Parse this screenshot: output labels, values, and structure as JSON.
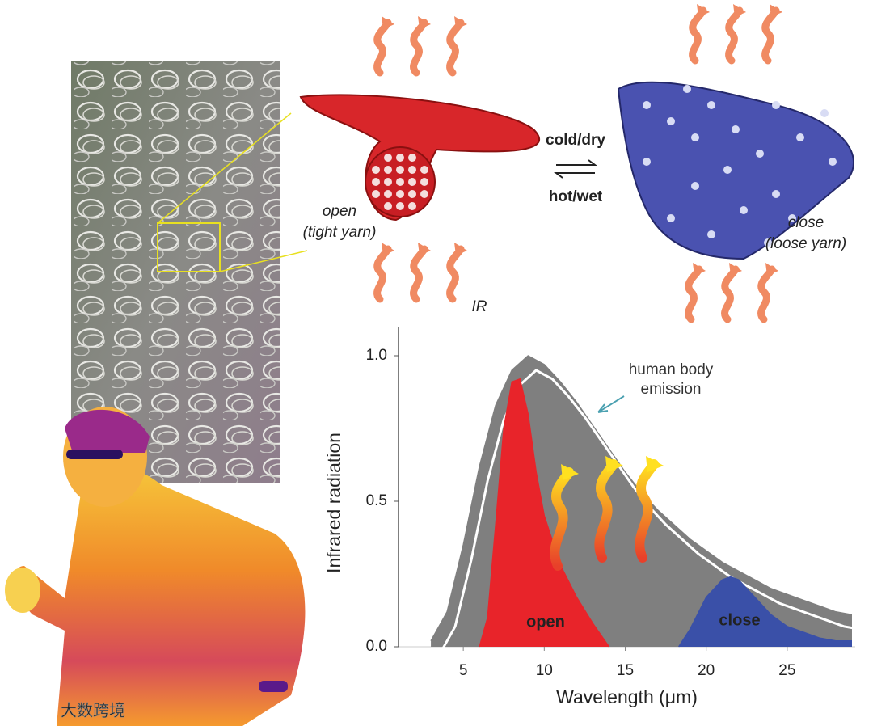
{
  "chart_data": {
    "type": "area",
    "xlabel": "Wavelength (μm)",
    "ylabel": "Infrared radiation",
    "xlim": [
      1,
      29.2
    ],
    "ylim": [
      0,
      1.1
    ],
    "xticks": [
      5,
      10,
      15,
      20,
      25
    ],
    "yticks": [
      {
        "value": 0,
        "label": "0.0"
      },
      0.5,
      {
        "value": 1,
        "label": "1.0"
      }
    ],
    "series": [
      {
        "name": "human body emission",
        "color": "#7f7f7f",
        "x": [
          3,
          4,
          5,
          6,
          7,
          8,
          9,
          10,
          11,
          12,
          13,
          14,
          15,
          16,
          17,
          18,
          19,
          20,
          21,
          22,
          23,
          24,
          25,
          26,
          27,
          28,
          29
        ],
        "values": [
          0.02,
          0.12,
          0.35,
          0.62,
          0.83,
          0.95,
          1.0,
          0.97,
          0.91,
          0.84,
          0.76,
          0.68,
          0.6,
          0.53,
          0.47,
          0.42,
          0.37,
          0.33,
          0.29,
          0.26,
          0.23,
          0.2,
          0.18,
          0.16,
          0.14,
          0.12,
          0.11
        ]
      },
      {
        "name": "open",
        "color": "#e8242a",
        "x": [
          6,
          6.5,
          7,
          7.5,
          8,
          8.5,
          9,
          9.5,
          10,
          11,
          12,
          13,
          14
        ],
        "values": [
          0,
          0.1,
          0.42,
          0.75,
          0.91,
          0.92,
          0.8,
          0.6,
          0.45,
          0.28,
          0.17,
          0.08,
          0
        ]
      },
      {
        "name": "close",
        "color": "#3a50a8",
        "x": [
          18.3,
          19,
          20,
          21,
          21.5,
          22,
          23,
          24,
          25,
          26,
          27,
          28,
          29
        ],
        "values": [
          0,
          0.06,
          0.17,
          0.23,
          0.24,
          0.23,
          0.17,
          0.11,
          0.07,
          0.05,
          0.03,
          0.02,
          0.02
        ]
      }
    ]
  },
  "diagram": {
    "open_state": "open",
    "open_note": "(tight yarn)",
    "close_state": "close",
    "close_note": "(loose yarn)",
    "cold_dry": "cold/dry",
    "hot_wet": "hot/wet",
    "ir": "IR",
    "watermark": "大数跨境"
  }
}
